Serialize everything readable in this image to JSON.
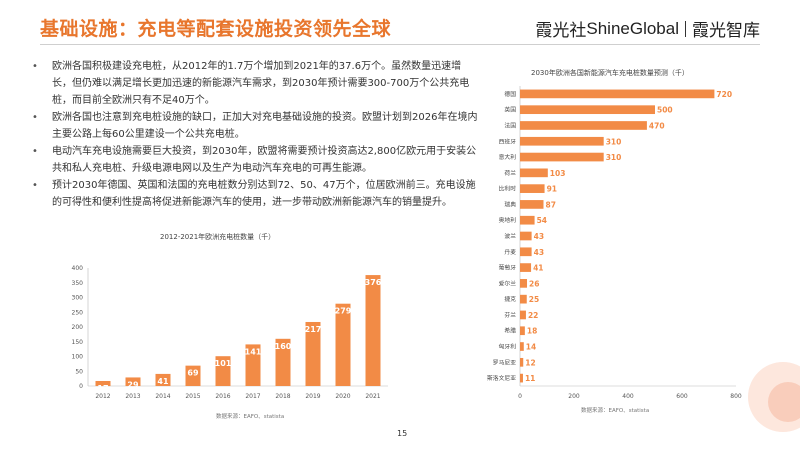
{
  "slide": {
    "title": "基础设施：充电等配套设施投资领先全球",
    "logo": {
      "brand_cn": "霞光社",
      "brand_en": "ShineGlobal",
      "brand_sub": "霞光智库"
    },
    "page_number": "15",
    "bullets": [
      "欧洲各国积极建设充电桩，从2012年的1.7万个增加到2021年的37.6万个。虽然数量迅速增长，但仍难以满足增长更加迅速的新能源汽车需求，到2030年预计需要300-700万个公共充电桩，而目前全欧洲只有不足40万个。",
      "欧洲各国也注意到充电桩设施的缺口，正加大对充电基础设施的投资。欧盟计划到2026年在境内主要公路上每60公里建设一个公共充电桩。",
      "电动汽车充电设施需要巨大投资，到2030年，欧盟将需要预计投资高达2,800亿欧元用于安装公共和私人充电桩、升级电源电网以及生产为电动汽车充电的可再生能源。",
      "预计2030年德国、英国和法国的充电桩数分别达到72、50、47万个，位居欧洲前三。充电设施的可得性和便利性提高将促进新能源汽车的使用，进一步带动欧洲新能源汽车的销量提升。"
    ]
  },
  "colors": {
    "accent": "#e8762d",
    "bar": "#f28b46",
    "text": "#333333"
  },
  "chart_data": [
    {
      "type": "bar",
      "title": "2012-2021年欧洲充电桩数量（千）",
      "source": "数据来源：EAFO、statista",
      "categories": [
        "2012",
        "2013",
        "2014",
        "2015",
        "2016",
        "2017",
        "2018",
        "2019",
        "2020",
        "2021"
      ],
      "values": [
        17,
        29,
        41,
        69,
        101,
        141,
        160,
        217,
        279,
        376
      ],
      "ylim": [
        0,
        400
      ],
      "yticks": [
        0,
        50,
        100,
        150,
        200,
        250,
        300,
        350,
        400
      ],
      "xlabel": "",
      "ylabel": "",
      "grid": false,
      "data_labels": true
    },
    {
      "type": "bar",
      "orientation": "horizontal",
      "title": "2030年欧洲各国新能源汽车充电桩数量预测（千）",
      "source": "数据来源：EAFO、statista",
      "categories": [
        "德国",
        "英国",
        "法国",
        "西班牙",
        "意大利",
        "荷兰",
        "比利时",
        "瑞典",
        "奥地利",
        "波兰",
        "丹麦",
        "葡萄牙",
        "爱尔兰",
        "捷克",
        "芬兰",
        "希腊",
        "匈牙利",
        "罗马尼亚",
        "斯洛文尼亚"
      ],
      "values": [
        720,
        500,
        470,
        310,
        310,
        103,
        91,
        87,
        54,
        43,
        43,
        41,
        26,
        25,
        22,
        18,
        14,
        12,
        11
      ],
      "xlim": [
        0,
        800
      ],
      "xticks": [
        0,
        200,
        400,
        600,
        800
      ],
      "xlabel": "",
      "ylabel": "",
      "grid": false,
      "data_labels": true
    }
  ]
}
